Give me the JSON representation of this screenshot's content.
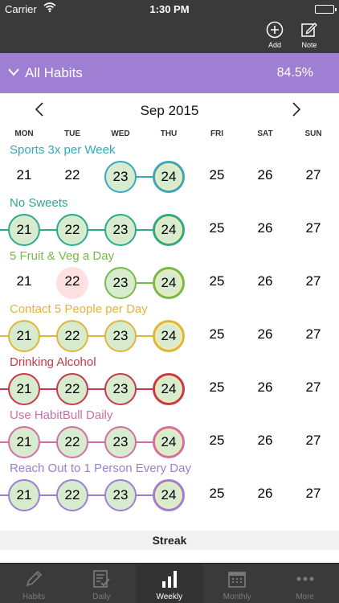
{
  "status_bar": {
    "carrier": "Carrier",
    "time": "1:30 PM"
  },
  "nav": {
    "add_label": "Add",
    "note_label": "Note"
  },
  "filter": {
    "title": "All Habits",
    "percent": "84.5%"
  },
  "calendar": {
    "month_label": "Sep 2015",
    "weekdays": [
      "MON",
      "TUE",
      "WED",
      "THU",
      "FRI",
      "SAT",
      "SUN"
    ],
    "days": [
      "21",
      "22",
      "23",
      "24",
      "25",
      "26",
      "27"
    ]
  },
  "habits": [
    {
      "name": "Sports 3x per Week",
      "color": "#3aa6bf",
      "states": [
        "none",
        "none",
        "done",
        "today",
        "none",
        "none",
        "none"
      ]
    },
    {
      "name": "No Sweets",
      "color": "#2ea98a",
      "states": [
        "done",
        "done",
        "done",
        "today",
        "none",
        "none",
        "none"
      ]
    },
    {
      "name": "5 Fruit & Veg a Day",
      "color": "#79b84a",
      "states": [
        "none",
        "missed",
        "done",
        "today",
        "none",
        "none",
        "none"
      ]
    },
    {
      "name": "Contact 5 People per Day",
      "color": "#e2b53a",
      "states": [
        "done",
        "done",
        "done",
        "today",
        "none",
        "none",
        "none"
      ]
    },
    {
      "name": "Drinking Alcohol",
      "color": "#c8394a",
      "states": [
        "done",
        "done",
        "done",
        "today",
        "none",
        "none",
        "none"
      ]
    },
    {
      "name": "Use HabitBull Daily",
      "color": "#cf6fa6",
      "states": [
        "done",
        "done",
        "done",
        "today",
        "none",
        "none",
        "none"
      ]
    },
    {
      "name": "Reach Out to 1 Person Every Day",
      "color": "#9b7fd0",
      "states": [
        "done",
        "done",
        "done",
        "today",
        "none",
        "none",
        "none"
      ]
    }
  ],
  "streak_label": "Streak",
  "tabs": [
    {
      "label": "Habits",
      "icon": "pencil-icon",
      "active": false
    },
    {
      "label": "Daily",
      "icon": "checklist-icon",
      "active": false
    },
    {
      "label": "Weekly",
      "icon": "bar-chart-icon",
      "active": true
    },
    {
      "label": "Monthly",
      "icon": "calendar-icon",
      "active": false
    },
    {
      "label": "More",
      "icon": "ellipsis-icon",
      "active": false
    }
  ]
}
